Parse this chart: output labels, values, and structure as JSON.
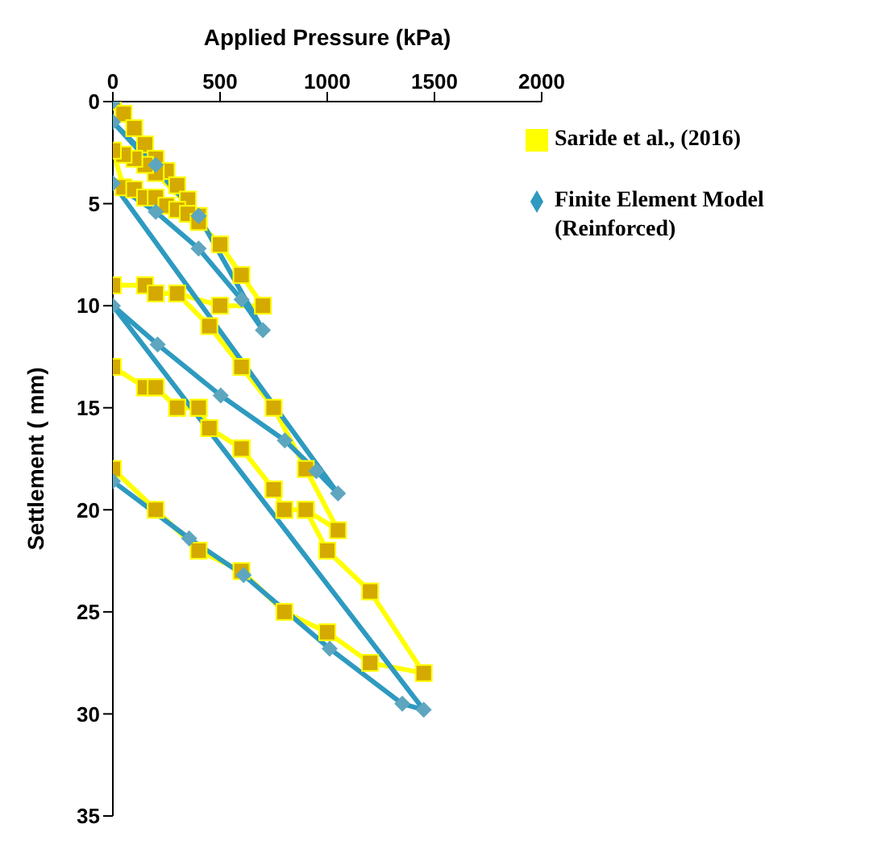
{
  "chart_data": {
    "type": "line",
    "xlabel": "Applied Pressure (kPa)",
    "ylabel": "Settlement ( mm)",
    "xlim": [
      0,
      2000
    ],
    "xticks": [
      0,
      500,
      1000,
      1500,
      2000
    ],
    "ylim": [
      35,
      0
    ],
    "yticks": [
      0,
      5,
      10,
      15,
      20,
      25,
      30,
      35
    ],
    "grid": false,
    "legend": "top right",
    "line_style": "solid",
    "series": [
      {
        "name": "Saride et al., (2016)",
        "color": "#ffff00",
        "marker": "square",
        "x": [
          0,
          50,
          100,
          150,
          200,
          250,
          300,
          350,
          400,
          200,
          150,
          100,
          50,
          0,
          50,
          100,
          150,
          200,
          250,
          300,
          350,
          400,
          500,
          600,
          700,
          500,
          300,
          200,
          150,
          0,
          150,
          200,
          300,
          450,
          600,
          750,
          900,
          1050,
          900,
          800,
          750,
          600,
          450,
          400,
          300,
          200,
          150,
          0,
          150,
          200,
          300,
          400,
          450,
          600,
          750,
          800,
          900,
          1000,
          1200,
          1450,
          1200,
          1000,
          800,
          600,
          400,
          200,
          0
        ],
        "values": [
          0,
          0.6,
          1.3,
          2.1,
          2.8,
          3.4,
          4.1,
          4.8,
          5.6,
          3.5,
          3.1,
          2.8,
          2.6,
          2.4,
          4.2,
          4.3,
          4.7,
          4.7,
          5.1,
          5.3,
          5.5,
          5.9,
          7,
          8.5,
          10,
          10,
          9.4,
          9.4,
          9,
          9,
          9,
          9.4,
          9.4,
          11,
          13,
          15,
          18,
          21,
          20,
          20,
          19,
          17,
          16,
          15,
          15,
          14,
          14,
          13,
          14,
          14,
          15,
          15,
          16,
          17,
          19,
          20,
          20,
          22,
          24,
          28,
          27.5,
          26,
          25,
          23,
          22,
          20,
          18
        ]
      },
      {
        "name": "Finite Element Model (Reinforced)",
        "color": "#2e9ac0",
        "marker": "diamond",
        "x": [
          0,
          400,
          200,
          0,
          400,
          700,
          600,
          400,
          200,
          0,
          1050,
          949,
          802,
          503,
          209,
          0,
          1450,
          1350,
          1011,
          610,
          356,
          0
        ],
        "values": [
          0,
          5.6,
          3.1,
          1,
          5.6,
          11.2,
          9.7,
          7.2,
          5.4,
          4,
          19.2,
          18.1,
          16.6,
          14.4,
          11.9,
          10,
          29.8,
          29.5,
          26.8,
          23.2,
          21.4,
          18.6
        ]
      }
    ]
  }
}
